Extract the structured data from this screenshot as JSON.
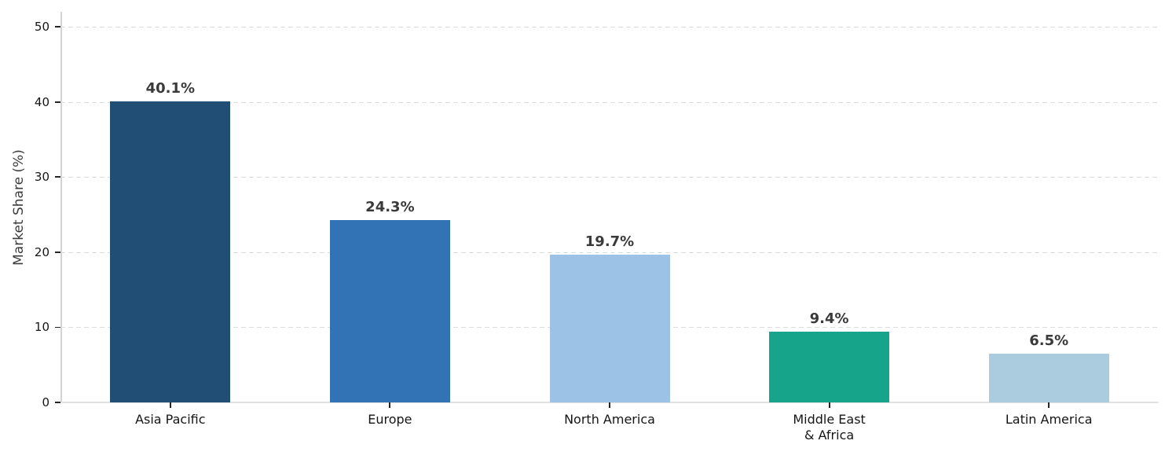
{
  "chart_data": {
    "type": "bar",
    "categories": [
      "Asia Pacific",
      "Europe",
      "North America",
      "Middle East\n& Africa",
      "Latin America"
    ],
    "values": [
      40.1,
      24.3,
      19.7,
      9.4,
      6.5
    ],
    "value_labels": [
      "40.1%",
      "24.3%",
      "19.7%",
      "9.4%",
      "6.5%"
    ],
    "bar_colors": [
      "#214E74",
      "#3173B4",
      "#9CC3E5",
      "#16A58A",
      "#ABCBDF"
    ],
    "title": "",
    "xlabel": "",
    "ylabel": "Market Share (%)",
    "ylim": [
      0,
      52
    ],
    "yticks": [
      0,
      10,
      20,
      30,
      40,
      50
    ],
    "grid": "horizontal-dashed",
    "legend": "none"
  },
  "styles": {
    "grid_color": "#dcdcdc",
    "spine_color": "#d4d4d4",
    "baseline_color": "#e2e2e2",
    "tick_color": "#262626",
    "tick_label_color": "#151515",
    "value_label_color": "#3a3a3a",
    "axis_label_color": "#3c3c3c",
    "background_color": "#ffffff"
  }
}
